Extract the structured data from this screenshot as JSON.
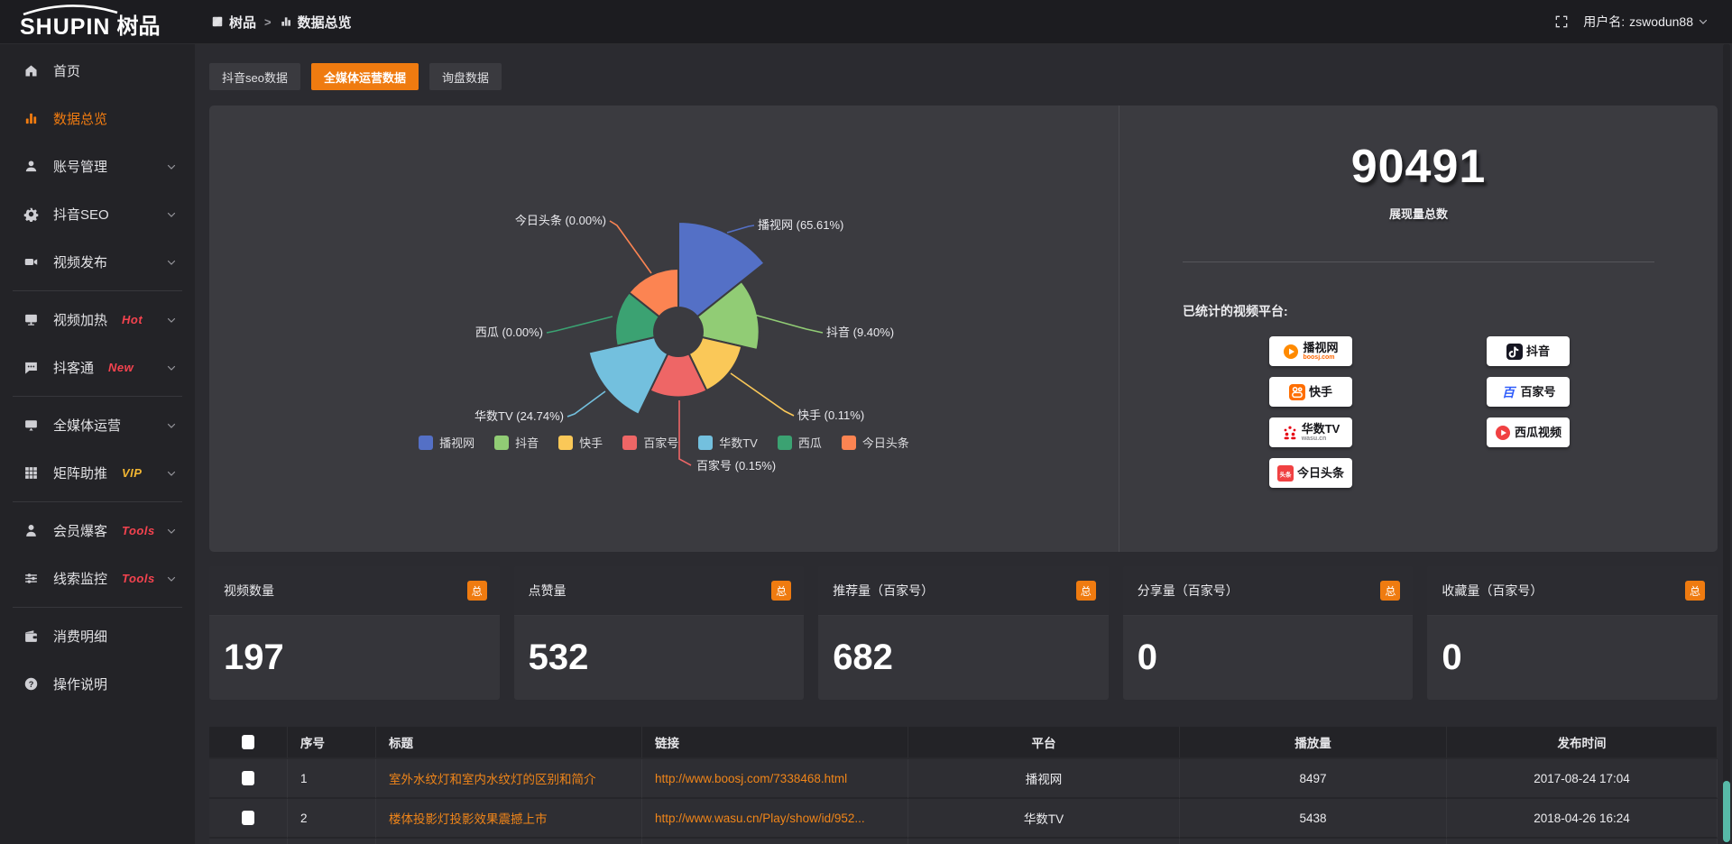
{
  "header": {
    "logo_en": "SHUPIN",
    "logo_cn": "树品",
    "breadcrumb": [
      {
        "label": "树品",
        "icon": "bc-app"
      },
      {
        "label": "数据总览",
        "icon": "bc-chart"
      }
    ],
    "breadcrumb_separator": ">",
    "username_label": "用户名:",
    "username": "zswodun88"
  },
  "sidebar": {
    "items": [
      {
        "key": "home",
        "label": "首页",
        "icon": "home",
        "chevron": false,
        "active": false
      },
      {
        "key": "data-overview",
        "label": "数据总览",
        "icon": "chart",
        "chevron": false,
        "active": true
      },
      {
        "key": "account-management",
        "label": "账号管理",
        "icon": "user",
        "chevron": true
      },
      {
        "key": "douyin-seo",
        "label": "抖音SEO",
        "icon": "gear",
        "chevron": true
      },
      {
        "key": "video-publish",
        "label": "视频发布",
        "icon": "video",
        "chevron": true,
        "divider_after": true
      },
      {
        "key": "video-heating",
        "label": "视频加热",
        "icon": "screen",
        "chevron": true,
        "badge": "Hot",
        "badge_color": "#f5434f"
      },
      {
        "key": "douketong",
        "label": "抖客通",
        "icon": "chat",
        "chevron": true,
        "badge": "New",
        "badge_color": "#f5434f",
        "divider_after": true
      },
      {
        "key": "omni-media",
        "label": "全媒体运营",
        "icon": "monitor",
        "chevron": true
      },
      {
        "key": "matrix-boost",
        "label": "矩阵助推",
        "icon": "grid",
        "chevron": true,
        "badge": "VIP",
        "badge_color": "#f2b632",
        "divider_after": true
      },
      {
        "key": "member-burst",
        "label": "会员爆客",
        "icon": "user2",
        "chevron": true,
        "badge": "Tools",
        "badge_color": "#f5434f"
      },
      {
        "key": "lead-monitor",
        "label": "线索监控",
        "icon": "sliders",
        "chevron": true,
        "badge": "Tools",
        "badge_color": "#f5434f",
        "divider_after": true
      },
      {
        "key": "consumption-detail",
        "label": "消费明细",
        "icon": "wallet",
        "chevron": false
      },
      {
        "key": "operation-guide",
        "label": "操作说明",
        "icon": "help",
        "chevron": false
      }
    ]
  },
  "tabs": [
    {
      "key": "douyin-seo-data",
      "label": "抖音seo数据",
      "active": false
    },
    {
      "key": "omni-media-data",
      "label": "全媒体运营数据",
      "active": true
    },
    {
      "key": "inquiry-data",
      "label": "询盘数据",
      "active": false
    }
  ],
  "chart_data": {
    "type": "pie",
    "variant": "nightingale-rose",
    "categories": [
      "播视网",
      "抖音",
      "快手",
      "百家号",
      "华数TV",
      "西瓜",
      "今日头条"
    ],
    "values": [
      65.61,
      9.4,
      0.11,
      0.15,
      24.74,
      0.0,
      0.0
    ],
    "value_unit": "percent",
    "labels": [
      "播视网 (65.61%)",
      "抖音 (9.40%)",
      "快手 (0.11%)",
      "百家号 (0.15%)",
      "华数TV (24.74%)",
      "西瓜 (0.00%)",
      "今日头条 (0.00%)"
    ],
    "colors": [
      "#5470c6",
      "#91cc75",
      "#fac858",
      "#ee6666",
      "#73c0de",
      "#3ba272",
      "#fc8452"
    ],
    "legend": [
      "播视网",
      "抖音",
      "快手",
      "百家号",
      "华数TV",
      "西瓜",
      "今日头条"
    ],
    "legend_position": "bottom"
  },
  "summary": {
    "total_value": "90491",
    "total_label": "展现量总数",
    "platforms_label": "已统计的视频平台:",
    "platforms": [
      {
        "key": "boosj",
        "name": "播视网",
        "sub": "boosj.com",
        "sub_color": "#f60"
      },
      {
        "key": "douyin",
        "name": "抖音"
      },
      {
        "key": "kuaishou",
        "name": "快手"
      },
      {
        "key": "baijiahao",
        "name": "百家号"
      },
      {
        "key": "wasu",
        "name": "华数TV",
        "sub": "wasu.cn",
        "sub_color": "#8a8a8e"
      },
      {
        "key": "xigua",
        "name": "西瓜视频"
      },
      {
        "key": "toutiao",
        "name": "今日头条"
      }
    ]
  },
  "stat_cards": [
    {
      "key": "video-count",
      "label": "视频数量",
      "badge": "总",
      "value": "197"
    },
    {
      "key": "like-count",
      "label": "点赞量",
      "badge": "总",
      "value": "532"
    },
    {
      "key": "recommend-count",
      "label": "推荐量（百家号）",
      "badge": "总",
      "value": "682"
    },
    {
      "key": "share-count",
      "label": "分享量（百家号）",
      "badge": "总",
      "value": "0"
    },
    {
      "key": "favorite-count",
      "label": "收藏量（百家号）",
      "badge": "总",
      "value": "0"
    }
  ],
  "table": {
    "columns": [
      "",
      "序号",
      "标题",
      "链接",
      "平台",
      "播放量",
      "发布时间"
    ],
    "rows": [
      {
        "index": "1",
        "title": "室外水纹灯和室内水纹灯的区别和简介",
        "link": "http://www.boosj.com/7338468.html",
        "platform": "播视网",
        "plays": "8497",
        "published": "2017-08-24 17:04"
      },
      {
        "index": "2",
        "title": "楼体投影灯投影效果震撼上市",
        "link": "http://www.wasu.cn/Play/show/id/952...",
        "platform": "华数TV",
        "plays": "5438",
        "published": "2018-04-26 16:24"
      },
      {
        "index": "",
        "title": "",
        "link": "",
        "platform": "",
        "plays": "",
        "published": ""
      }
    ]
  },
  "colors": {
    "accent": "#ef7b10",
    "link": "#f08519",
    "panel": "#3b3b40"
  }
}
